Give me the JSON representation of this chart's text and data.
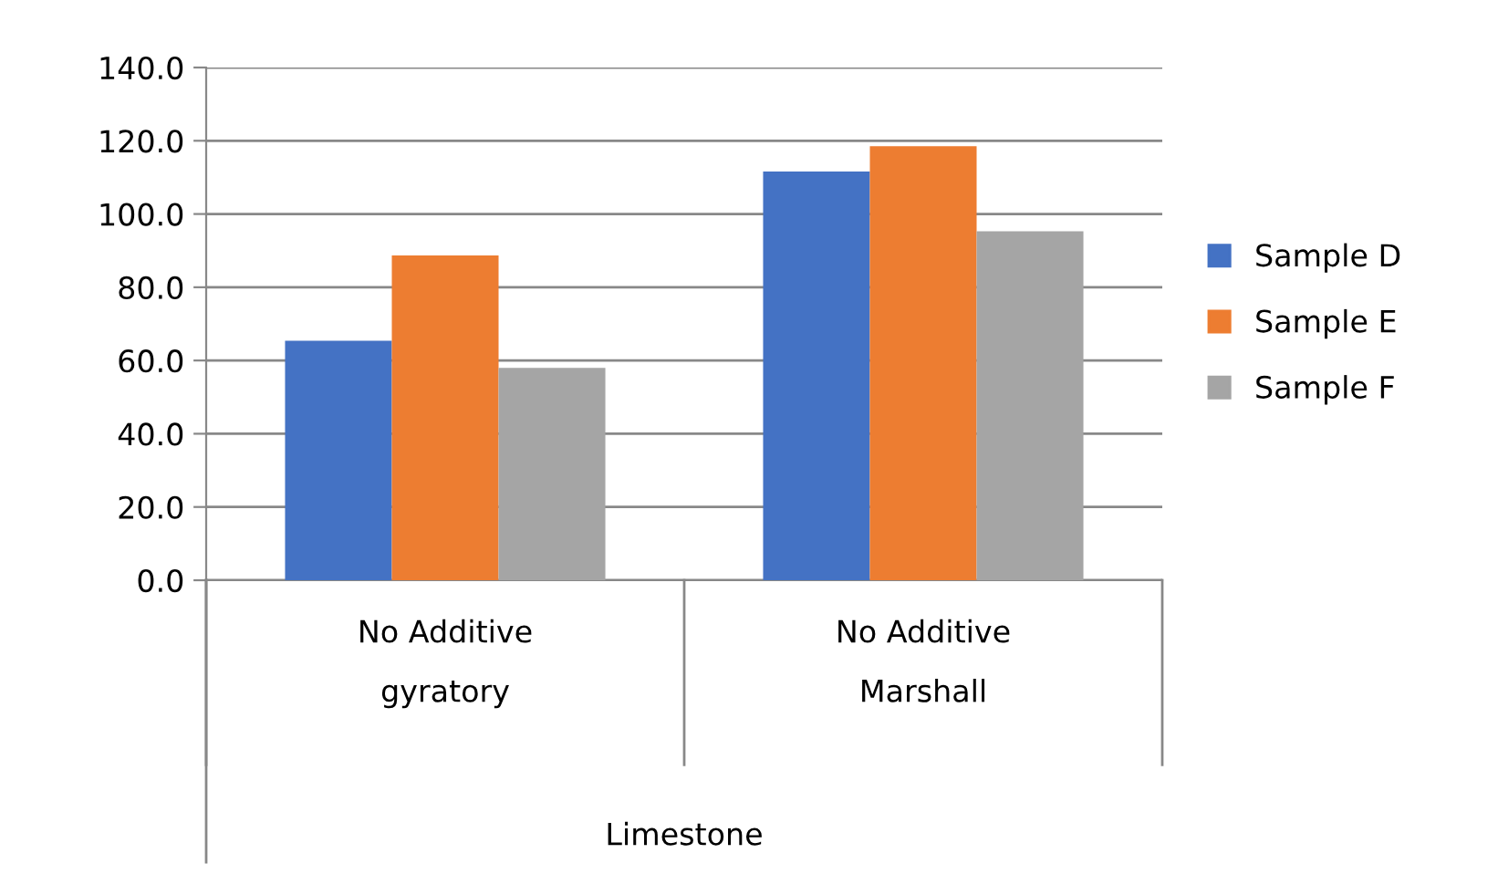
{
  "chart_data": {
    "type": "bar",
    "categories": [
      "No Additive\ngyratory",
      "No Additive\nMarshall"
    ],
    "annotations": [
      "Limestone"
    ],
    "series": [
      {
        "name": "Sample D",
        "color": "#4472c4",
        "values": [
          65.4,
          111.6
        ]
      },
      {
        "name": "Sample E",
        "color": "#ed7d31",
        "values": [
          88.7,
          118.5
        ]
      },
      {
        "name": "Sample F",
        "color": "#a5a5a5",
        "values": [
          58.0,
          95.3
        ]
      }
    ],
    "ylim": [
      0,
      140
    ],
    "yticks": [
      {
        "value": 0,
        "label": "0.0"
      },
      {
        "value": 20,
        "label": "20.0"
      },
      {
        "value": 40,
        "label": "40.0"
      },
      {
        "value": 60,
        "label": "60.0"
      },
      {
        "value": 80,
        "label": "80.0"
      },
      {
        "value": 100,
        "label": "100.0"
      },
      {
        "value": 120,
        "label": "120.0"
      },
      {
        "value": 140,
        "label": "140.0"
      }
    ],
    "grid": "y",
    "legend": "right"
  }
}
